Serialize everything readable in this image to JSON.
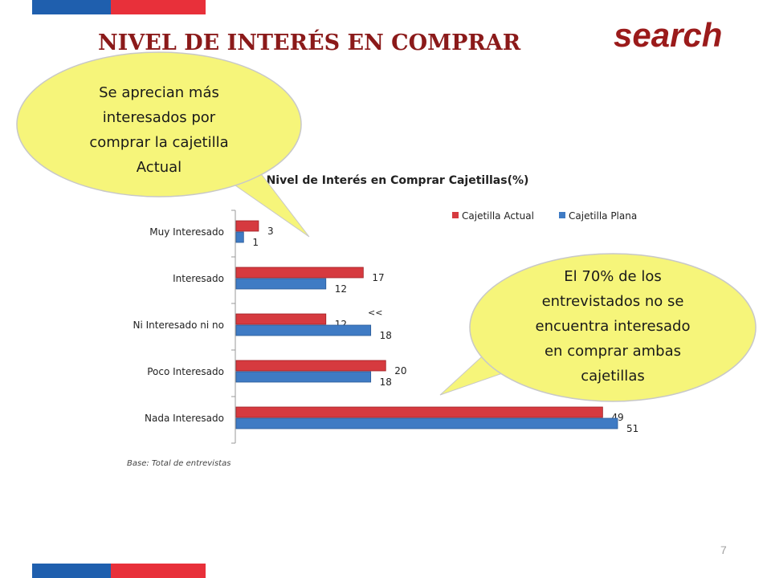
{
  "slide": {
    "title": "NIVEL DE INTERÉS EN COMPRAR",
    "logo_text": "search",
    "page_number": "7",
    "base_note": "Base: Total  de entrevistas",
    "colors": {
      "flag_blue": "#1f5fae",
      "flag_red": "#e8303a",
      "callout_fill": "#f6f57a",
      "callout_stroke": "#c8c8c8"
    }
  },
  "callouts": [
    {
      "name": "callout-actual",
      "lines": [
        "Se aprecian más",
        "interesados por",
        "comprar la cajetilla",
        "Actual"
      ]
    },
    {
      "name": "callout-seventy",
      "lines": [
        "El 70% de los",
        "entrevistados no se",
        "encuentra interesado",
        "en comprar ambas",
        "cajetillas"
      ]
    }
  ],
  "chart_data": {
    "type": "bar",
    "orientation": "horizontal",
    "title": "Nivel de Interés en Comprar Cajetillas(%)",
    "categories": [
      "Muy Interesado",
      "Interesado",
      "Ni Interesado ni no",
      "Poco Interesado",
      "Nada Interesado"
    ],
    "series": [
      {
        "name": "Cajetilla Actual",
        "color": "#d63a3f",
        "values": [
          3,
          17,
          12,
          20,
          49
        ]
      },
      {
        "name": "Cajetilla Plana",
        "color": "#3f7bc4",
        "values": [
          1,
          12,
          18,
          18,
          51
        ]
      }
    ],
    "xlim": [
      0,
      51
    ],
    "annotations": [
      "<<"
    ],
    "legend_position": "top-right",
    "grid": false
  }
}
